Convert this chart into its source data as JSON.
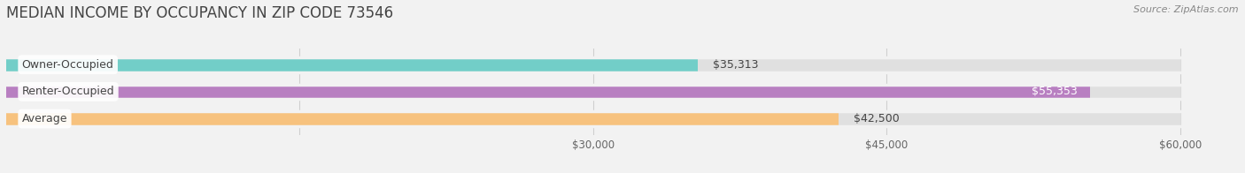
{
  "title": "MEDIAN INCOME BY OCCUPANCY IN ZIP CODE 73546",
  "source": "Source: ZipAtlas.com",
  "categories": [
    "Owner-Occupied",
    "Renter-Occupied",
    "Average"
  ],
  "values": [
    35313,
    55353,
    42500
  ],
  "bar_colors": [
    "#72cec8",
    "#b87fc1",
    "#f7c27e"
  ],
  "label_colors": [
    "#333333",
    "#ffffff",
    "#333333"
  ],
  "value_labels": [
    "$35,313",
    "$55,353",
    "$42,500"
  ],
  "value_inside": [
    false,
    true,
    false
  ],
  "xlim": [
    0,
    63000
  ],
  "xmin": 0,
  "xtick_positions": [
    15000,
    30000,
    45000,
    60000
  ],
  "xtick_labels": [
    "",
    "$30,000",
    "$45,000",
    "$60,000"
  ],
  "bg_color": "#f2f2f2",
  "bar_bg_color": "#e0e0e0",
  "title_fontsize": 12,
  "source_fontsize": 8,
  "label_fontsize": 9,
  "value_fontsize": 9,
  "tick_fontsize": 8.5
}
